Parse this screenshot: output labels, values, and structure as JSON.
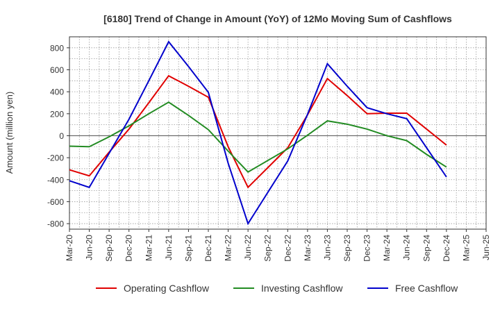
{
  "chart_data": {
    "type": "line",
    "title": "[6180]  Trend of Change in Amount (YoY) of 12Mo Moving Sum of Cashflows",
    "ylabel": "Amount (million yen)",
    "xlabel": "",
    "ylim": [
      -850,
      900
    ],
    "yticks": [
      -800,
      -600,
      -400,
      -200,
      0,
      200,
      400,
      600,
      800
    ],
    "categories": [
      "Mar-20",
      "Jun-20",
      "Sep-20",
      "Dec-20",
      "Mar-21",
      "Jun-21",
      "Sep-21",
      "Dec-21",
      "Mar-22",
      "Jun-22",
      "Sep-22",
      "Dec-22",
      "Mar-23",
      "Jun-23",
      "Sep-23",
      "Dec-23",
      "Mar-24",
      "Jun-24",
      "Sep-24",
      "Dec-24",
      "Mar-25",
      "Jun-25"
    ],
    "grid": true,
    "legend_position": "bottom",
    "series": [
      {
        "name": "Operating Cashflow",
        "color": "#e00000",
        "values": [
          -310,
          -365,
          -150,
          60,
          300,
          545,
          450,
          350,
          -100,
          -470,
          -290,
          -110,
          190,
          520,
          365,
          200,
          205,
          205,
          60,
          -85,
          null,
          null
        ]
      },
      {
        "name": "Investing Cashflow",
        "color": "#228b22",
        "values": [
          -95,
          -100,
          -10,
          90,
          200,
          305,
          185,
          55,
          -140,
          -330,
          -225,
          -120,
          5,
          135,
          105,
          60,
          0,
          -45,
          -170,
          -285,
          null,
          null
        ]
      },
      {
        "name": "Free Cashflow",
        "color": "#0000cc",
        "values": [
          -410,
          -470,
          -160,
          150,
          500,
          855,
          630,
          395,
          -250,
          -800,
          -515,
          -230,
          195,
          655,
          450,
          255,
          200,
          155,
          -110,
          -375,
          null,
          null
        ]
      }
    ]
  }
}
